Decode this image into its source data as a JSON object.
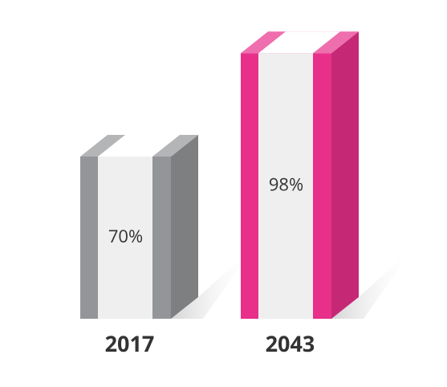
{
  "chart_data": {
    "type": "bar",
    "categories": [
      "2017",
      "2043"
    ],
    "values": [
      70,
      98
    ],
    "value_labels": [
      "70%",
      "98%"
    ],
    "colors": [
      "#939598",
      "#e8308a"
    ]
  }
}
